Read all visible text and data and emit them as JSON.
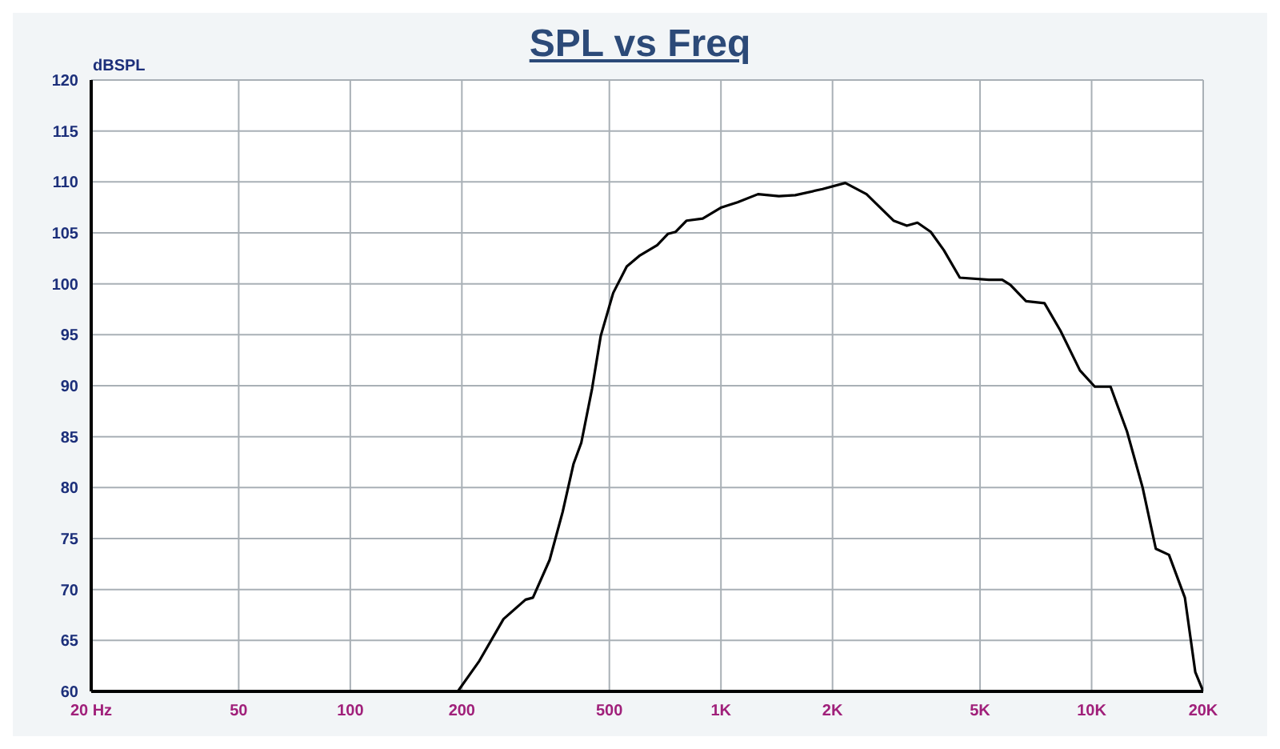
{
  "chart_data": {
    "type": "line",
    "title": "SPL vs Freq",
    "ylabel": "dBSPL",
    "x": [
      195,
      223,
      259,
      297,
      311,
      345,
      374,
      400,
      420,
      449,
      474,
      512,
      557,
      605,
      673,
      719,
      755,
      808,
      893,
      1003,
      1109,
      1259,
      1433,
      1587,
      1880,
      2165,
      2470,
      2921,
      3173,
      3389,
      3681,
      3993,
      4410,
      5282,
      5739,
      6032,
      6655,
      7462,
      8240,
      9300,
      10200,
      11250,
      12460,
      13730,
      14900,
      16170,
      17850,
      19040,
      20000
    ],
    "series": [
      {
        "color": "#000000",
        "values": [
          60,
          63,
          67.1,
          69,
          69.2,
          72.9,
          77.6,
          82.3,
          84.4,
          89.7,
          94.9,
          99.1,
          101.7,
          102.8,
          103.8,
          104.9,
          105.1,
          106.2,
          106.4,
          107.5,
          108,
          108.8,
          108.6,
          108.7,
          109.3,
          109.9,
          108.8,
          106.2,
          105.7,
          106,
          105.1,
          103.3,
          100.6,
          100.4,
          100.4,
          99.9,
          98.3,
          98.1,
          95.4,
          91.5,
          89.9,
          89.9,
          85.5,
          80,
          74,
          73.4,
          69.2,
          61.9,
          60
        ]
      }
    ],
    "log": "x",
    "xlim": [
      20,
      20000
    ],
    "xticks": [
      {
        "value": 20,
        "label": "20  Hz"
      },
      50,
      100,
      200,
      500,
      {
        "value": 1000,
        "label": "1K"
      },
      {
        "value": 2000,
        "label": "2K"
      },
      {
        "value": 5000,
        "label": "5K"
      },
      {
        "value": 10000,
        "label": "10K"
      },
      {
        "value": 20000,
        "label": "20K"
      }
    ],
    "ylim": [
      60,
      120
    ],
    "yticks": [
      60,
      65,
      70,
      75,
      80,
      85,
      90,
      95,
      100,
      105,
      110,
      115,
      120
    ],
    "grid": true,
    "marker": "none",
    "line_style": "solid"
  }
}
